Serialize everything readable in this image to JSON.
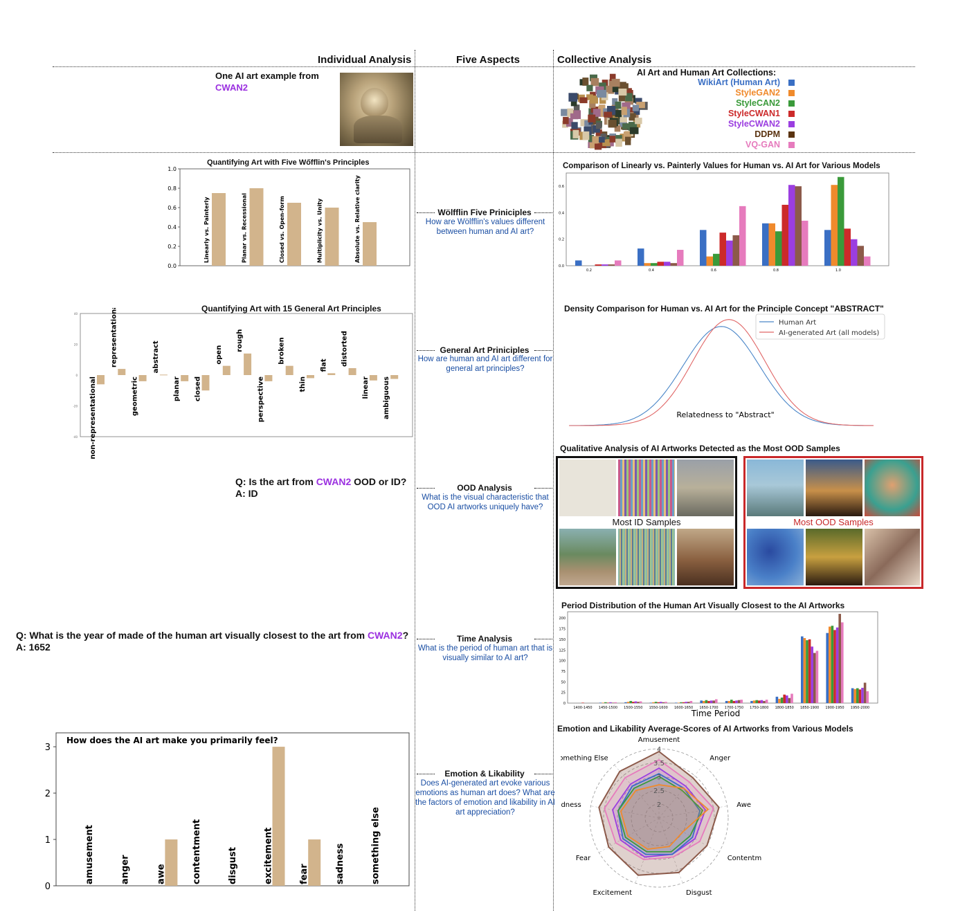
{
  "columns": {
    "individual": "Individual Analysis",
    "aspects": "Five Aspects",
    "collective": "Collective Analysis"
  },
  "example": {
    "line1": "One AI art example from",
    "model": "CWAN2"
  },
  "collections": {
    "title": "AI Art and Human Art Collections:",
    "items": [
      {
        "label": "WikiArt (Human Art)",
        "color": "#3a6fc4"
      },
      {
        "label": "StyleGAN2",
        "color": "#f08a2c"
      },
      {
        "label": "StyleCAN2",
        "color": "#3a9a3a"
      },
      {
        "label": "StyleCWAN1",
        "color": "#cc2a2a"
      },
      {
        "label": "StyleCWAN2",
        "color": "#9b3ee0"
      },
      {
        "label": "DDPM",
        "color": "#5a3310"
      },
      {
        "label": "VQ-GAN",
        "color": "#e67bbd"
      }
    ]
  },
  "aspects": [
    {
      "title": "Wölfflin Five Priniciples",
      "question": "How are Wölfflin's values different between human and AI art?"
    },
    {
      "title": "General Art Priniciples",
      "question": "How are human and AI art different for general art principles?"
    },
    {
      "title": "OOD Analysis",
      "question": "What is the visual characteristic that OOD AI artworks uniquely have?"
    },
    {
      "title": "Time Analysis",
      "question": "What is the period of human art that is visually similar to AI art?"
    },
    {
      "title": "Emotion & Likability",
      "question": "Does AI-generated art evoke various emotions as human art does? What are the factors of emotion and likability in AI art appreciation?"
    }
  ],
  "ood_question": {
    "q_prefix": "Q: Is the art from ",
    "model": "CWAN2",
    "q_suffix": " OOD or ID?",
    "answer": "A: ID"
  },
  "time_question": {
    "q_prefix": "Q: What is the year of made of the human art visually closest to the art from ",
    "model": "CWAN2",
    "q_suffix": "?",
    "answer": "A: 1652"
  },
  "ood_samples": {
    "title": "Qualitative Analysis of AI Artworks Detected as the Most OOD Samples",
    "id_label": "Most ID Samples",
    "ood_label": "Most OOD Samples"
  },
  "chart_data": [
    {
      "id": "wolfflin",
      "type": "bar",
      "title": "Quantifying Art with Five Wőfflin's Principles",
      "categories": [
        "Linearly vs. Painterly",
        "Planar vs. Recessional",
        "Closed vs. Open-form",
        "Multiplicity vs. Unity",
        "Absolute vs. Relative clarity"
      ],
      "values": [
        0.75,
        0.8,
        0.65,
        0.6,
        0.45
      ],
      "ylim": [
        0,
        1.0
      ],
      "yticks": [
        "0.0",
        "0.2",
        "0.4",
        "0.6",
        "0.8",
        "1.0"
      ],
      "color": "#d2b48c"
    },
    {
      "id": "general",
      "type": "bar",
      "title": "Quantifying Art with 15 General Art Principles",
      "categories": [
        "non-representational",
        "representational",
        "geometric",
        "abstract",
        "planar",
        "closed",
        "open",
        "rough",
        "perspective",
        "broken",
        "thin",
        "flat",
        "distorted",
        "linear",
        "ambiguous"
      ],
      "values": [
        -6,
        4,
        -4,
        0.3,
        -4,
        -10,
        6,
        14,
        -4,
        6,
        -2,
        1.2,
        4.5,
        -3.5,
        -2.5
      ],
      "ylim": [
        -40,
        40
      ],
      "color": "#d2b48c"
    },
    {
      "id": "linearly",
      "type": "bar",
      "title": "Comparison of Linearly vs. Painterly Values for Human vs. AI Art for Various Models",
      "categories": [
        "0.2",
        "0.4",
        "0.6",
        "0.8",
        "1.0"
      ],
      "ylim": [
        0,
        0.7
      ],
      "yticks": [
        "0.0",
        "0.2",
        "0.4",
        "0.6"
      ],
      "series": [
        {
          "values": [
            0.04,
            0.13,
            0.27,
            0.32,
            0.27
          ],
          "color": "#3a6fc4"
        },
        {
          "values": [
            0.0,
            0.02,
            0.07,
            0.32,
            0.61
          ],
          "color": "#f08a2c"
        },
        {
          "values": [
            0.0,
            0.02,
            0.09,
            0.26,
            0.67
          ],
          "color": "#3a9a3a"
        },
        {
          "values": [
            0.01,
            0.03,
            0.25,
            0.46,
            0.28
          ],
          "color": "#cc2a2a"
        },
        {
          "values": [
            0.01,
            0.03,
            0.19,
            0.61,
            0.2
          ],
          "color": "#9b3ee0"
        },
        {
          "values": [
            0.01,
            0.02,
            0.23,
            0.6,
            0.15
          ],
          "color": "#8c5a4a"
        },
        {
          "values": [
            0.04,
            0.12,
            0.45,
            0.34,
            0.07
          ],
          "color": "#e67bbd"
        }
      ]
    },
    {
      "id": "density",
      "type": "line",
      "title": "Density Comparison for Human vs. AI Art for the Principle Concept \"ABSTRACT\"",
      "xlabel": "Relatedness to \"Abstract\"",
      "series": [
        {
          "name": "Human Art",
          "color": "#4a86c8",
          "mean": 0.0,
          "sd": 1.0,
          "peak": 1.0
        },
        {
          "name": "AI-generated Art (all models)",
          "color": "#e06666",
          "mean": 0.2,
          "sd": 0.95,
          "peak": 1.07
        }
      ]
    },
    {
      "id": "period",
      "type": "bar",
      "title": "Period Distribution of the Human Art Visually Closest to the AI Artworks",
      "xlabel": "Time Period",
      "categories": [
        "1400-1450",
        "1450-1500",
        "1500-1550",
        "1550-1600",
        "1600-1650",
        "1650-1700",
        "1700-1750",
        "1750-1800",
        "1800-1850",
        "1850-1900",
        "1900-1950",
        "1950-2000"
      ],
      "ylim": [
        0,
        215
      ],
      "yticks": [
        "0",
        "25",
        "50",
        "75",
        "100",
        "125",
        "150",
        "175",
        "200"
      ],
      "series": [
        {
          "values": [
            0,
            1,
            2,
            1,
            1,
            6,
            5,
            5,
            15,
            157,
            165,
            35
          ],
          "color": "#3a6fc4"
        },
        {
          "values": [
            0,
            1,
            3,
            2,
            1,
            5,
            5,
            6,
            10,
            153,
            180,
            33
          ],
          "color": "#f08a2c"
        },
        {
          "values": [
            0,
            2,
            5,
            3,
            2,
            7,
            8,
            7,
            13,
            148,
            182,
            35
          ],
          "color": "#3a9a3a"
        },
        {
          "values": [
            1,
            1,
            3,
            2,
            2,
            5,
            5,
            6,
            20,
            150,
            172,
            32
          ],
          "color": "#cc2a2a"
        },
        {
          "values": [
            0,
            2,
            4,
            3,
            3,
            6,
            6,
            7,
            18,
            133,
            178,
            36
          ],
          "color": "#9b3ee0"
        },
        {
          "values": [
            0,
            1,
            3,
            2,
            3,
            6,
            7,
            5,
            12,
            118,
            210,
            48
          ],
          "color": "#8c5a4a"
        },
        {
          "values": [
            0,
            2,
            4,
            3,
            5,
            9,
            8,
            8,
            22,
            123,
            190,
            28
          ],
          "color": "#e67bbd"
        }
      ]
    },
    {
      "id": "emotion-bar",
      "type": "bar",
      "title": "How does the AI art make you primarily feel?",
      "categories": [
        "amusement",
        "anger",
        "awe",
        "contentment",
        "disgust",
        "excitement",
        "fear",
        "sadness",
        "something else"
      ],
      "values": [
        0,
        0,
        1,
        0,
        0,
        3,
        1,
        0,
        0
      ],
      "ylim": [
        0,
        3.3
      ],
      "yticks": [
        "0",
        "1",
        "2",
        "3"
      ],
      "color": "#d2b48c"
    },
    {
      "id": "radar",
      "type": "radar",
      "title": "Emotion and Likability Average-Scores of AI Artworks from Various Models",
      "axes": [
        "Amusement",
        "Anger",
        "Awe",
        "Contentment",
        "Disgust",
        "Excitement",
        "Fear",
        "Sadness",
        "Something Else"
      ],
      "rticks": [
        "2",
        "2.5",
        "3",
        "3.5",
        "4"
      ],
      "rrange": [
        1.5,
        4
      ],
      "series": [
        {
          "color": "#8c5a4a",
          "values": [
            3.9,
            3.4,
            3.7,
            3.5,
            3.6,
            3.7,
            3.6,
            3.7,
            3.7
          ]
        },
        {
          "color": "#e67bbd",
          "values": [
            3.6,
            3.2,
            3.5,
            3.2,
            3.0,
            3.1,
            3.3,
            3.5,
            3.4
          ]
        },
        {
          "color": "#9b3ee0",
          "values": [
            3.3,
            3.0,
            3.2,
            3.0,
            2.9,
            3.0,
            3.1,
            3.2,
            3.1
          ]
        },
        {
          "color": "#3a6fc4",
          "values": [
            3.1,
            2.9,
            3.0,
            2.9,
            2.9,
            2.9,
            3.0,
            3.0,
            3.0
          ]
        },
        {
          "color": "#3a9a3a",
          "values": [
            3.0,
            2.8,
            3.1,
            2.8,
            2.8,
            2.8,
            2.9,
            3.0,
            2.9
          ]
        },
        {
          "color": "#f08a2c",
          "values": [
            2.7,
            2.9,
            3.3,
            2.5,
            2.6,
            2.7,
            2.8,
            2.9,
            2.8
          ]
        }
      ]
    }
  ]
}
